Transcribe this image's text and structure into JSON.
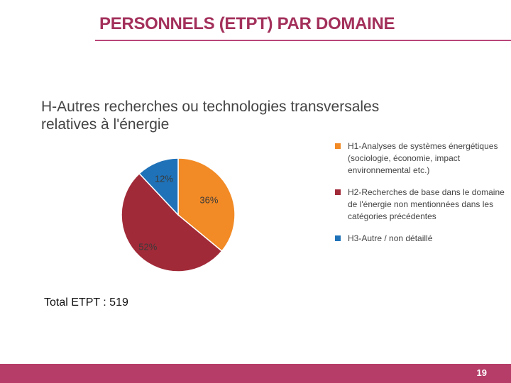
{
  "slide": {
    "title": "PERSONNELS (ETPT) PAR DOMAINE",
    "total": "Total ETPT : 519",
    "page_number": "19"
  },
  "colors": {
    "title": "#a3305b",
    "rule": "#b9467a",
    "footer": "#b53d68"
  },
  "chart_data": {
    "type": "pie",
    "title": "H-Autres recherches ou technologies transversales relatives à l'énergie",
    "categories": [
      "H1-Analyses de systèmes énergétiques (sociologie, économie, impact environnemental etc.)",
      "H2-Recherches de base dans le domaine de l'énergie non mentionnées dans les catégories précédentes",
      "H3-Autre / non détaillé"
    ],
    "values": [
      36,
      52,
      12
    ],
    "labels": [
      "36%",
      "52%",
      "12%"
    ],
    "colors": [
      "#f28a25",
      "#a12a38",
      "#1f72b8"
    ],
    "legend_position": "right"
  }
}
